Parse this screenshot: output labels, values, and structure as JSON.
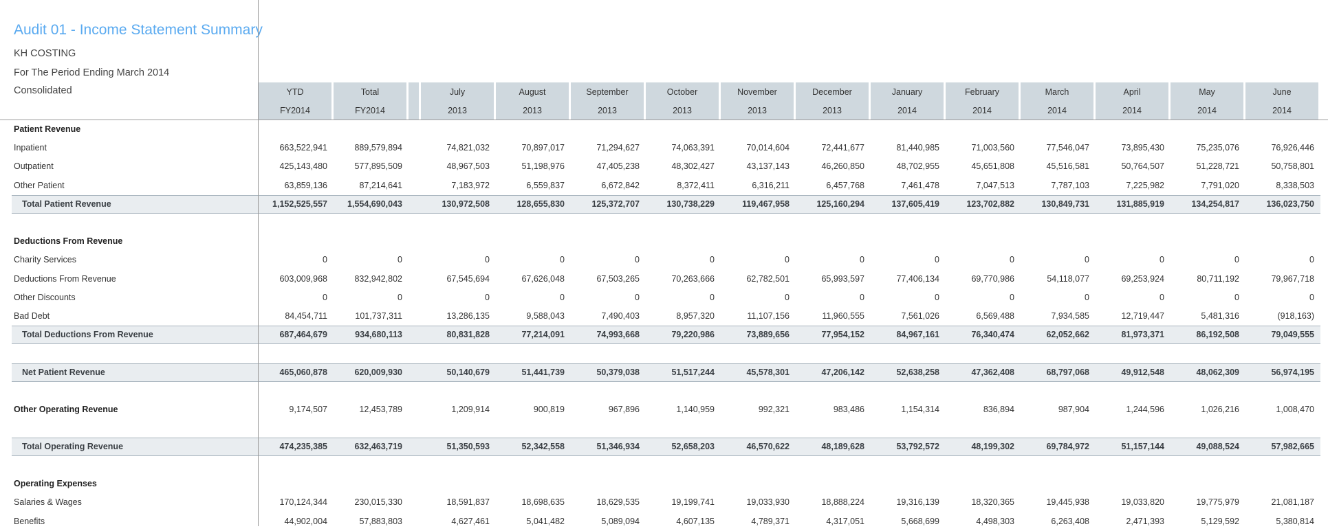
{
  "report": {
    "title": "Audit 01 - Income Statement Summary",
    "entity": "KH COSTING",
    "period": "For The Period Ending March 2014",
    "scope": "Consolidated"
  },
  "columns": [
    {
      "l1": "YTD",
      "l2": "FY2014"
    },
    {
      "l1": "Total",
      "l2": "FY2014"
    },
    {
      "l1": "July",
      "l2": "2013"
    },
    {
      "l1": "August",
      "l2": "2013"
    },
    {
      "l1": "September",
      "l2": "2013"
    },
    {
      "l1": "October",
      "l2": "2013"
    },
    {
      "l1": "November",
      "l2": "2013"
    },
    {
      "l1": "December",
      "l2": "2013"
    },
    {
      "l1": "January",
      "l2": "2014"
    },
    {
      "l1": "February",
      "l2": "2014"
    },
    {
      "l1": "March",
      "l2": "2014"
    },
    {
      "l1": "April",
      "l2": "2014"
    },
    {
      "l1": "May",
      "l2": "2014"
    },
    {
      "l1": "June",
      "l2": "2014"
    }
  ],
  "rows": [
    {
      "type": "heading",
      "label": "Patient Revenue",
      "values": []
    },
    {
      "type": "data",
      "label": "Inpatient",
      "values": [
        "663,522,941",
        "889,579,894",
        "74,821,032",
        "70,897,017",
        "71,294,627",
        "74,063,391",
        "70,014,604",
        "72,441,677",
        "81,440,985",
        "71,003,560",
        "77,546,047",
        "73,895,430",
        "75,235,076",
        "76,926,446"
      ]
    },
    {
      "type": "data",
      "label": "Outpatient",
      "values": [
        "425,143,480",
        "577,895,509",
        "48,967,503",
        "51,198,976",
        "47,405,238",
        "48,302,427",
        "43,137,143",
        "46,260,850",
        "48,702,955",
        "45,651,808",
        "45,516,581",
        "50,764,507",
        "51,228,721",
        "50,758,801"
      ]
    },
    {
      "type": "data",
      "label": "Other Patient",
      "values": [
        "63,859,136",
        "87,214,641",
        "7,183,972",
        "6,559,837",
        "6,672,842",
        "8,372,411",
        "6,316,211",
        "6,457,768",
        "7,461,478",
        "7,047,513",
        "7,787,103",
        "7,225,982",
        "7,791,020",
        "8,338,503"
      ]
    },
    {
      "type": "total",
      "label": "Total Patient Revenue",
      "values": [
        "1,152,525,557",
        "1,554,690,043",
        "130,972,508",
        "128,655,830",
        "125,372,707",
        "130,738,229",
        "119,467,958",
        "125,160,294",
        "137,605,419",
        "123,702,882",
        "130,849,731",
        "131,885,919",
        "134,254,817",
        "136,023,750"
      ]
    },
    {
      "type": "blank",
      "label": "",
      "values": []
    },
    {
      "type": "heading",
      "label": "Deductions From Revenue",
      "values": []
    },
    {
      "type": "data",
      "label": "Charity Services",
      "values": [
        "0",
        "0",
        "0",
        "0",
        "0",
        "0",
        "0",
        "0",
        "0",
        "0",
        "0",
        "0",
        "0",
        "0"
      ]
    },
    {
      "type": "data",
      "label": "Deductions From Revenue",
      "values": [
        "603,009,968",
        "832,942,802",
        "67,545,694",
        "67,626,048",
        "67,503,265",
        "70,263,666",
        "62,782,501",
        "65,993,597",
        "77,406,134",
        "69,770,986",
        "54,118,077",
        "69,253,924",
        "80,711,192",
        "79,967,718"
      ]
    },
    {
      "type": "data",
      "label": "Other Discounts",
      "values": [
        "0",
        "0",
        "0",
        "0",
        "0",
        "0",
        "0",
        "0",
        "0",
        "0",
        "0",
        "0",
        "0",
        "0"
      ]
    },
    {
      "type": "data",
      "label": "Bad Debt",
      "values": [
        "84,454,711",
        "101,737,311",
        "13,286,135",
        "9,588,043",
        "7,490,403",
        "8,957,320",
        "11,107,156",
        "11,960,555",
        "7,561,026",
        "6,569,488",
        "7,934,585",
        "12,719,447",
        "5,481,316",
        "(918,163)"
      ]
    },
    {
      "type": "total",
      "label": "Total Deductions From Revenue",
      "values": [
        "687,464,679",
        "934,680,113",
        "80,831,828",
        "77,214,091",
        "74,993,668",
        "79,220,986",
        "73,889,656",
        "77,954,152",
        "84,967,161",
        "76,340,474",
        "62,052,662",
        "81,973,371",
        "86,192,508",
        "79,049,555"
      ]
    },
    {
      "type": "blank",
      "label": "",
      "values": []
    },
    {
      "type": "total",
      "label": "Net Patient Revenue",
      "values": [
        "465,060,878",
        "620,009,930",
        "50,140,679",
        "51,441,739",
        "50,379,038",
        "51,517,244",
        "45,578,301",
        "47,206,142",
        "52,638,258",
        "47,362,408",
        "68,797,068",
        "49,912,548",
        "48,062,309",
        "56,974,195"
      ]
    },
    {
      "type": "tall",
      "label": "Other Operating Revenue",
      "values": [
        "9,174,507",
        "12,453,789",
        "1,209,914",
        "900,819",
        "967,896",
        "1,140,959",
        "992,321",
        "983,486",
        "1,154,314",
        "836,894",
        "987,904",
        "1,244,596",
        "1,026,216",
        "1,008,470"
      ]
    },
    {
      "type": "total",
      "label": "Total Operating Revenue",
      "values": [
        "474,235,385",
        "632,463,719",
        "51,350,593",
        "52,342,558",
        "51,346,934",
        "52,658,203",
        "46,570,622",
        "48,189,628",
        "53,792,572",
        "48,199,302",
        "69,784,972",
        "51,157,144",
        "49,088,524",
        "57,982,665"
      ]
    },
    {
      "type": "blank",
      "label": "",
      "values": []
    },
    {
      "type": "heading",
      "label": "Operating Expenses",
      "values": []
    },
    {
      "type": "data",
      "label": "Salaries & Wages",
      "values": [
        "170,124,344",
        "230,015,330",
        "18,591,837",
        "18,698,635",
        "18,629,535",
        "19,199,741",
        "19,033,930",
        "18,888,224",
        "19,316,139",
        "18,320,365",
        "19,445,938",
        "19,033,820",
        "19,775,979",
        "21,081,187"
      ]
    },
    {
      "type": "data",
      "label": "Benefits",
      "values": [
        "44,902,004",
        "57,883,803",
        "4,627,461",
        "5,041,482",
        "5,089,094",
        "4,607,135",
        "4,789,371",
        "4,317,051",
        "5,668,699",
        "4,498,303",
        "6,263,408",
        "2,471,393",
        "5,129,592",
        "5,380,814"
      ]
    }
  ]
}
